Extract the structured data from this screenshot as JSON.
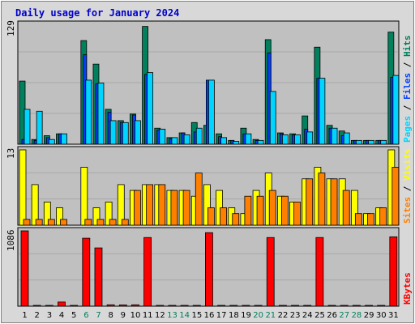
{
  "title": "Daily usage for January 2024",
  "colors": {
    "background": "#d8d8d8",
    "panel": "#c0c0c0",
    "title": "#0000cc",
    "hits": "#00805c",
    "files": "#0040ff",
    "pages": "#00d4ff",
    "visits": "#ffff00",
    "sites": "#ff8000",
    "kbytes": "#ff0000",
    "weekday_label": "#000000",
    "weekend_label": "#00805c"
  },
  "chart_data": [
    {
      "type": "bar",
      "categories": [
        "1",
        "2",
        "3",
        "4",
        "5",
        "6",
        "7",
        "8",
        "9",
        "10",
        "11",
        "12",
        "13",
        "14",
        "15",
        "16",
        "17",
        "18",
        "19",
        "20",
        "21",
        "22",
        "23",
        "24",
        "25",
        "26",
        "27",
        "28",
        "29",
        "30",
        "31"
      ],
      "weekend_days": [
        "6",
        "7",
        "13",
        "14",
        "20",
        "21",
        "27",
        "28"
      ],
      "ylim": [
        0,
        129
      ],
      "y_max_label": "129",
      "legend": [
        "Pages",
        "Files",
        "Hits"
      ],
      "series": [
        {
          "name": "Hits",
          "values": [
            67,
            5,
            9,
            11,
            0,
            110,
            85,
            37,
            25,
            32,
            125,
            17,
            7,
            12,
            23,
            20,
            11,
            4,
            17,
            5,
            111,
            12,
            11,
            30,
            103,
            20,
            14,
            4,
            4,
            4,
            119
          ]
        },
        {
          "name": "Files",
          "values": [
            5,
            4,
            7,
            11,
            0,
            95,
            64,
            34,
            23,
            31,
            74,
            15,
            6,
            12,
            13,
            68,
            8,
            4,
            11,
            4,
            97,
            11,
            10,
            16,
            70,
            17,
            9,
            4,
            4,
            4,
            71
          ]
        },
        {
          "name": "Pages",
          "values": [
            37,
            35,
            5,
            11,
            0,
            68,
            65,
            25,
            23,
            25,
            76,
            16,
            7,
            10,
            17,
            68,
            7,
            3,
            11,
            4,
            56,
            10,
            10,
            13,
            70,
            17,
            12,
            4,
            4,
            4,
            73
          ]
        }
      ]
    },
    {
      "type": "bar",
      "categories": [
        "1",
        "2",
        "3",
        "4",
        "5",
        "6",
        "7",
        "8",
        "9",
        "10",
        "11",
        "12",
        "13",
        "14",
        "15",
        "16",
        "17",
        "18",
        "19",
        "20",
        "21",
        "22",
        "23",
        "24",
        "25",
        "26",
        "27",
        "28",
        "29",
        "30",
        "31"
      ],
      "ylim": [
        0,
        13
      ],
      "y_max_label": "13",
      "legend": [
        "Sites",
        "Visits"
      ],
      "series": [
        {
          "name": "Visits",
          "values": [
            13,
            7,
            4,
            3,
            0,
            10,
            3,
            4,
            7,
            6,
            7,
            7,
            6,
            6,
            5,
            7,
            6,
            3,
            2,
            6,
            9,
            5,
            4,
            8,
            10,
            8,
            8,
            6,
            2,
            3,
            13
          ]
        },
        {
          "name": "Sites",
          "values": [
            1,
            1,
            1,
            1,
            0,
            1,
            1,
            1,
            1,
            6,
            7,
            7,
            6,
            6,
            9,
            3,
            3,
            2,
            5,
            5,
            6,
            5,
            4,
            8,
            9,
            8,
            6,
            2,
            2,
            3,
            10
          ]
        }
      ]
    },
    {
      "type": "bar",
      "categories": [
        "1",
        "2",
        "3",
        "4",
        "5",
        "6",
        "7",
        "8",
        "9",
        "10",
        "11",
        "12",
        "13",
        "14",
        "15",
        "16",
        "17",
        "18",
        "19",
        "20",
        "21",
        "22",
        "23",
        "24",
        "25",
        "26",
        "27",
        "28",
        "29",
        "30",
        "31"
      ],
      "ylim": [
        0,
        1086
      ],
      "y_max_label": "1086",
      "legend": [
        "KBytes"
      ],
      "series": [
        {
          "name": "KBytes",
          "values": [
            1086,
            0,
            0,
            60,
            0,
            980,
            840,
            20,
            18,
            20,
            990,
            0,
            0,
            0,
            0,
            1060,
            0,
            0,
            0,
            0,
            990,
            0,
            0,
            0,
            990,
            0,
            0,
            0,
            0,
            0,
            1000
          ]
        }
      ]
    }
  ]
}
